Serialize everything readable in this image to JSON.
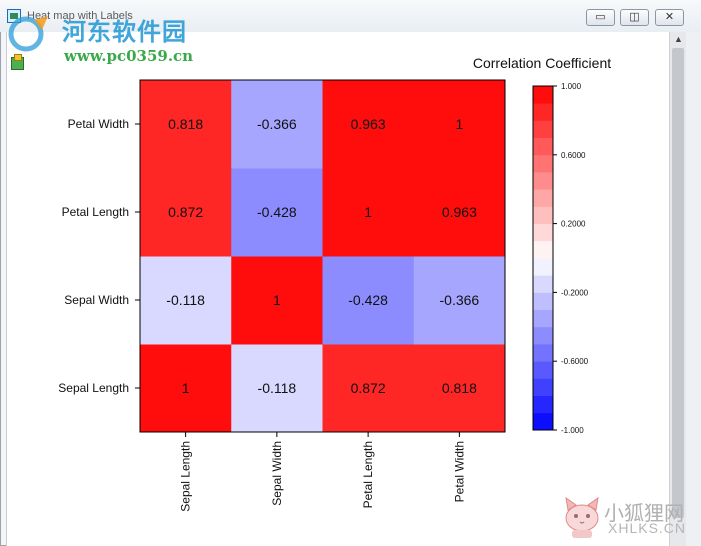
{
  "window": {
    "title": "Heat map with Labels",
    "buttons": {
      "minimize": "▭",
      "restore": "◫",
      "close": "✕"
    }
  },
  "watermarks": {
    "top_cn": "河东软件园",
    "top_url": "www.pc0359.cn",
    "bottom_cn": "小狐狸网",
    "bottom_url": "XHLKS.CN"
  },
  "chart_data": {
    "type": "heatmap",
    "title": "Correlation Coefficient",
    "x_categories": [
      "Sepal Length",
      "Sepal Width",
      "Petal Length",
      "Petal Width"
    ],
    "y_categories": [
      "Sepal Length",
      "Sepal Width",
      "Petal Length",
      "Petal Width"
    ],
    "values": [
      [
        1,
        -0.118,
        0.872,
        0.818
      ],
      [
        -0.118,
        1,
        -0.428,
        -0.366
      ],
      [
        0.872,
        -0.428,
        1,
        0.963
      ],
      [
        0.818,
        -0.366,
        0.963,
        1
      ]
    ],
    "labels": [
      [
        "1",
        "-0.118",
        "0.872",
        "0.818"
      ],
      [
        "-0.118",
        "1",
        "-0.428",
        "-0.366"
      ],
      [
        "0.872",
        "-0.428",
        "1",
        "0.963"
      ],
      [
        "0.818",
        "-0.366",
        "0.963",
        "1"
      ]
    ],
    "colorbar": {
      "range": [
        -1,
        1
      ],
      "tick_values": [
        1,
        0.6,
        0.2,
        -0.2,
        -0.6,
        -1
      ],
      "tick_labels": [
        "1.000",
        "0.6000",
        "0.2000",
        "-0.2000",
        "-0.6000",
        "-1.000"
      ],
      "low_color": "#0000ff",
      "mid_color": "#ffffff",
      "high_color": "#ff0000"
    }
  }
}
